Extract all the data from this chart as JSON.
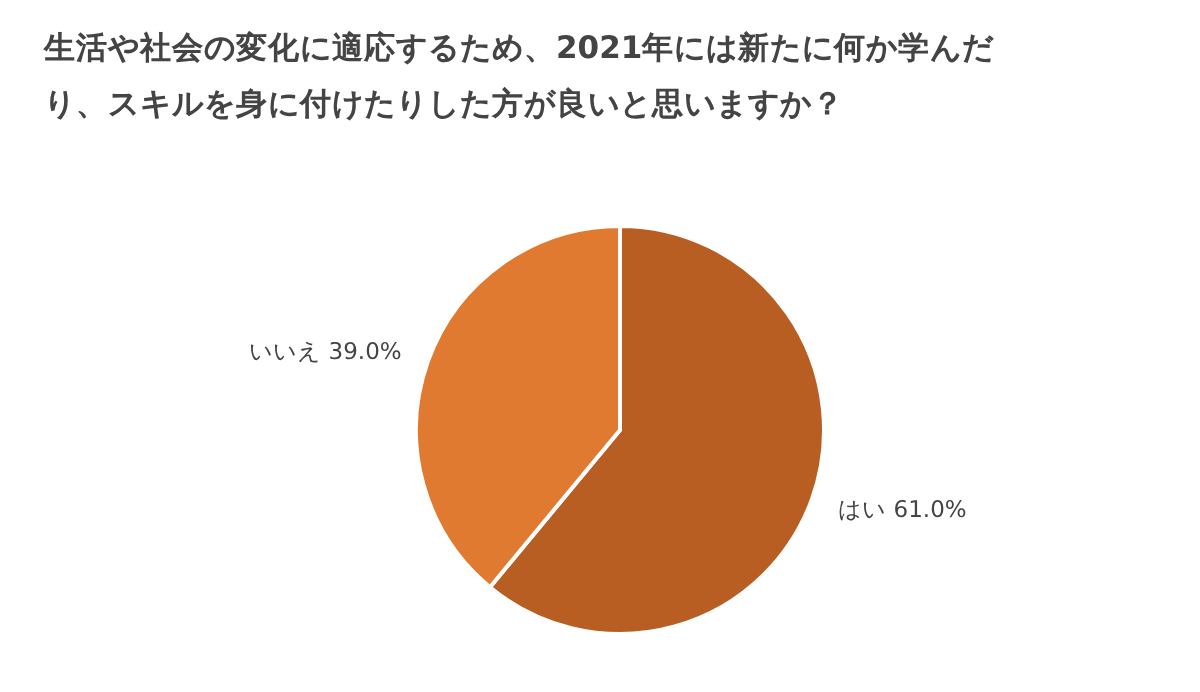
{
  "chart_data": {
    "type": "pie",
    "title": "生活や社会の変化に適応するため、2021年には新たに何か学んだり、スキルを身に付けたりした方が良いと思いますか？",
    "categories": [
      "はい",
      "いいえ"
    ],
    "values": [
      61.0,
      39.0
    ],
    "value_labels": [
      "61.0%",
      "39.0%"
    ],
    "colors": [
      "#b95e22",
      "#e07a30"
    ]
  }
}
